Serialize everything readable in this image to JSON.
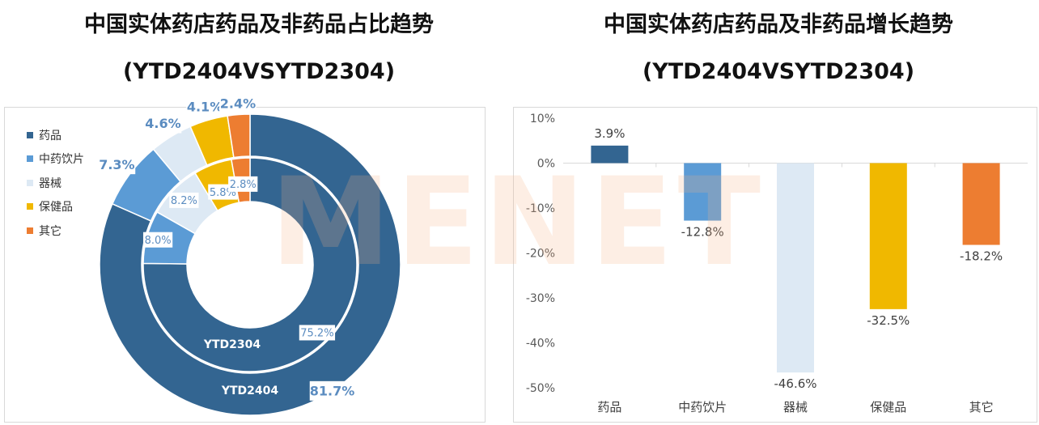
{
  "titles": {
    "left_line1": "中国实体药店药品及非药品占比趋势",
    "left_line2": "(YTD2404VSYTD2304)",
    "right_line1": "中国实体药店药品及非药品增长趋势",
    "right_line2": "(YTD2404VSYTD2304)"
  },
  "watermark": "MENET",
  "colors": {
    "药品": "#336591",
    "中药饮片": "#5b9bd5",
    "器械": "#dde9f4",
    "保健品": "#f0b800",
    "其它": "#ed7d31"
  },
  "chart_data": [
    {
      "type": "pie",
      "subtype": "donut",
      "categories": [
        "药品",
        "中药饮片",
        "器械",
        "保健品",
        "其它"
      ],
      "legend": "top-left",
      "series": [
        {
          "name": "YTD2404",
          "ring": "outer",
          "values": [
            81.7,
            7.3,
            4.6,
            4.1,
            2.4
          ],
          "labels": [
            "81.7%",
            "7.3%",
            "4.6%",
            "4.1%",
            "2.4%"
          ]
        },
        {
          "name": "YTD2304",
          "ring": "inner",
          "values": [
            75.2,
            8.0,
            8.2,
            5.8,
            2.8
          ],
          "labels": [
            "75.2%",
            "8.0%",
            "8.2%",
            "5.8%",
            "2.8%"
          ]
        }
      ]
    },
    {
      "type": "bar",
      "categories": [
        "药品",
        "中药饮片",
        "器械",
        "保健品",
        "其它"
      ],
      "values": [
        3.9,
        -12.8,
        -46.6,
        -32.5,
        -18.2
      ],
      "labels": [
        "3.9%",
        "-12.8%",
        "-46.6%",
        "-32.5%",
        "-18.2%"
      ],
      "ylim": [
        -50,
        10
      ],
      "yticks": [
        "10%",
        "0%",
        "-10%",
        "-20%",
        "-30%",
        "-40%",
        "-50%"
      ],
      "grid": false
    }
  ]
}
